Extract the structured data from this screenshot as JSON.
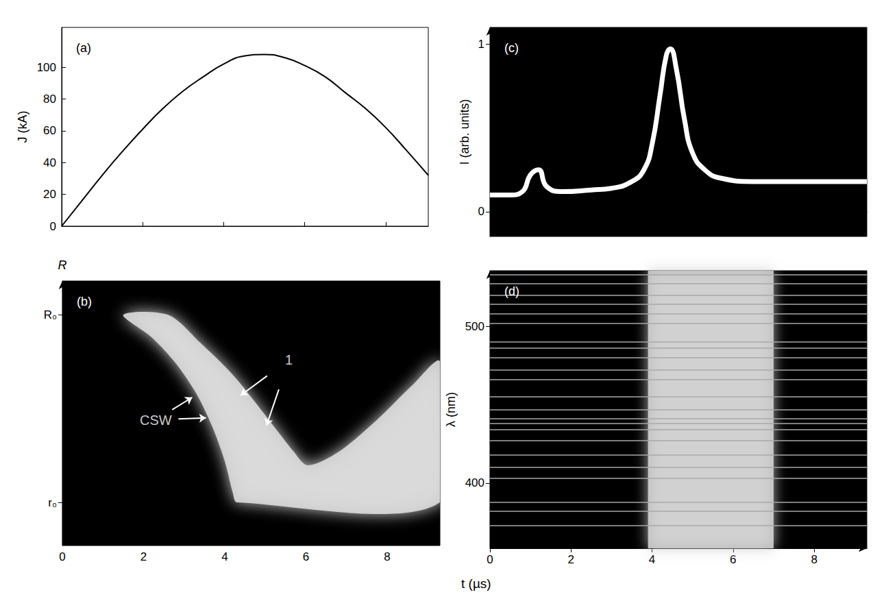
{
  "x_label": "t (µs)",
  "chart_data": [
    {
      "panel": "(a)",
      "type": "line",
      "y_label": "J (kA)",
      "x": [
        0,
        0.5,
        1,
        1.5,
        2,
        2.5,
        3,
        3.5,
        4,
        4.5,
        5,
        5.5,
        6,
        6.5,
        7,
        7.5,
        8,
        8.5,
        9.05
      ],
      "values": [
        0,
        16,
        32,
        47,
        61,
        74,
        85,
        94,
        102,
        107,
        108,
        106,
        101,
        94,
        84,
        74,
        62,
        48,
        32
      ],
      "color": "#000000",
      "xlim": [
        0,
        9.05
      ],
      "xticks": [
        0,
        2,
        4,
        6,
        8
      ],
      "ylim": [
        0,
        125
      ],
      "yticks": [
        0,
        20,
        40,
        60,
        80,
        100
      ],
      "tick_labels": "y"
    },
    {
      "panel": "(b)",
      "type": "streak",
      "y_label": "R",
      "glow_front": {
        "x": [
          1.5,
          2.2,
          2.8,
          3.3,
          3.7,
          4.0,
          4.2,
          4.3
        ],
        "y": [
          1.0,
          0.88,
          0.74,
          0.58,
          0.4,
          0.22,
          0.05,
          0
        ]
      },
      "glow_boundary": {
        "x": [
          2.6,
          3.4,
          4.2,
          4.8,
          5.3,
          5.7,
          6.0,
          6.4,
          7.0,
          7.8,
          8.6,
          9.3
        ],
        "y": [
          1.0,
          0.85,
          0.68,
          0.52,
          0.38,
          0.27,
          0.2,
          0.22,
          0.3,
          0.45,
          0.62,
          0.75
        ]
      },
      "annotations": [
        {
          "text": "1",
          "x": 5.58,
          "y": 0.76,
          "arrows": [
            [
              4.39,
              0.57
            ],
            [
              5.03,
              0.41
            ]
          ]
        },
        {
          "text": "CSW",
          "x": 2.3,
          "y": 0.44,
          "arrows": [
            [
              3.2,
              0.56
            ],
            [
              3.54,
              0.45
            ]
          ]
        }
      ],
      "color": "#dcdcdc",
      "xlim": [
        0,
        9.3
      ],
      "xticks": [
        0,
        2,
        4,
        6,
        8
      ],
      "ylim": [
        -0.23,
        1.18
      ],
      "yticks": [
        {
          "value": 0,
          "label": "r₀"
        },
        {
          "value": 1,
          "label": "R₀"
        }
      ]
    },
    {
      "panel": "(c)",
      "type": "line",
      "y_label": "I (arb. units)",
      "x": [
        0,
        0.5,
        0.8,
        1,
        1.2,
        1.4,
        1.8,
        2.5,
        3,
        3.5,
        3.8,
        4,
        4.2,
        4.35,
        4.45,
        4.6,
        4.8,
        5,
        5.3,
        5.7,
        6.5,
        8,
        9.3
      ],
      "values": [
        0.1,
        0.1,
        0.12,
        0.22,
        0.25,
        0.15,
        0.12,
        0.13,
        0.14,
        0.18,
        0.25,
        0.4,
        0.7,
        0.93,
        0.97,
        0.85,
        0.55,
        0.35,
        0.25,
        0.2,
        0.18,
        0.18,
        0.18
      ],
      "color": "#ffffff",
      "xlim": [
        0,
        9.3
      ],
      "xticks": [
        0,
        2,
        4,
        6,
        8
      ],
      "ylim": [
        -0.147,
        1.098
      ],
      "yticks": [
        0,
        1
      ],
      "tick_labels": "y"
    },
    {
      "panel": "(d)",
      "type": "spectrum",
      "y_label": "λ (nm)",
      "band": [
        3.9,
        7.0
      ],
      "lines_nm": [
        373,
        382,
        388,
        403,
        410,
        418,
        427,
        434,
        438,
        441,
        447,
        455,
        466,
        472,
        480,
        486,
        490,
        502,
        508,
        514,
        520,
        527,
        533
      ],
      "xlim": [
        0,
        9.3
      ],
      "xticks": [
        0,
        2,
        4,
        6,
        8
      ],
      "ylim": [
        358.5,
        535.4
      ],
      "yticks": [
        400,
        500
      ]
    }
  ]
}
